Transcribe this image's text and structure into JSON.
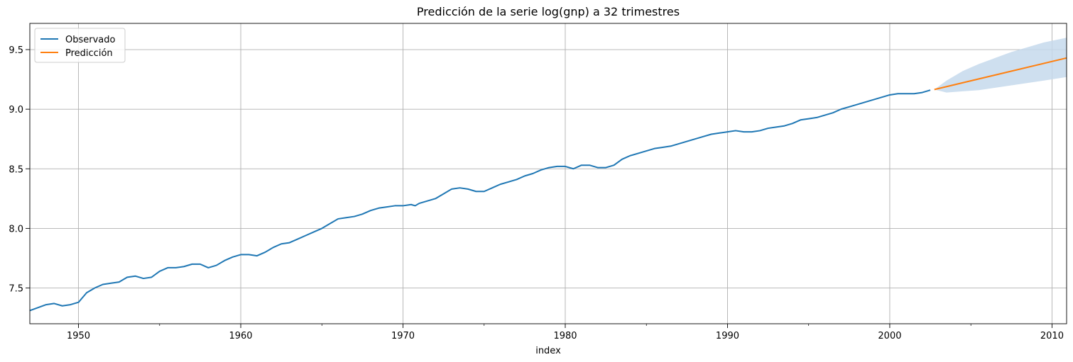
{
  "chart_data": {
    "type": "line",
    "title": "Predicción de la serie log(gnp) a 32 trimestres",
    "xlabel": "index",
    "ylabel": "",
    "xlim": [
      1947.0,
      2010.9
    ],
    "ylim": [
      7.2,
      9.72
    ],
    "x_ticks": [
      1950,
      1960,
      1970,
      1980,
      1990,
      2000,
      2010
    ],
    "x_tick_labels": [
      "1950",
      "1960",
      "1970",
      "1980",
      "1990",
      "2000",
      "2010"
    ],
    "y_ticks": [
      7.5,
      8.0,
      8.5,
      9.0,
      9.5
    ],
    "y_tick_labels": [
      "7.5",
      "8.0",
      "8.5",
      "9.0",
      "9.5"
    ],
    "grid": true,
    "legend_position": "top-left",
    "series": [
      {
        "name": "Observado",
        "color": "#1f77b4",
        "x": [
          1947.0,
          1948.0,
          1948.5,
          1949.0,
          1949.5,
          1950.0,
          1950.5,
          1951.0,
          1951.5,
          1952.0,
          1952.5,
          1953.0,
          1953.5,
          1954.0,
          1954.5,
          1955.0,
          1955.5,
          1956.0,
          1956.5,
          1957.0,
          1957.5,
          1958.0,
          1958.5,
          1959.0,
          1959.5,
          1960.0,
          1960.5,
          1961.0,
          1961.5,
          1962.0,
          1962.5,
          1963.0,
          1963.5,
          1964.0,
          1964.5,
          1965.0,
          1965.5,
          1966.0,
          1966.5,
          1967.0,
          1967.5,
          1968.0,
          1968.5,
          1969.0,
          1969.5,
          1970.0,
          1970.5,
          1970.75,
          1971.0,
          1971.5,
          1972.0,
          1972.5,
          1973.0,
          1973.5,
          1974.0,
          1974.5,
          1975.0,
          1975.5,
          1976.0,
          1976.5,
          1977.0,
          1977.5,
          1978.0,
          1978.5,
          1979.0,
          1979.5,
          1980.0,
          1980.5,
          1981.0,
          1981.5,
          1982.0,
          1982.5,
          1983.0,
          1983.5,
          1984.0,
          1984.5,
          1985.0,
          1985.5,
          1986.0,
          1986.5,
          1987.0,
          1987.5,
          1988.0,
          1988.5,
          1989.0,
          1989.5,
          1990.0,
          1990.5,
          1991.0,
          1991.5,
          1992.0,
          1992.5,
          1993.0,
          1993.5,
          1994.0,
          1994.5,
          1995.0,
          1995.5,
          1996.0,
          1996.5,
          1997.0,
          1997.5,
          1998.0,
          1998.5,
          1999.0,
          1999.5,
          2000.0,
          2000.5,
          2001.0,
          2001.5,
          2002.0,
          2002.5
        ],
        "values": [
          7.31,
          7.36,
          7.37,
          7.35,
          7.36,
          7.38,
          7.46,
          7.5,
          7.53,
          7.54,
          7.55,
          7.59,
          7.6,
          7.58,
          7.59,
          7.64,
          7.67,
          7.67,
          7.68,
          7.7,
          7.7,
          7.67,
          7.69,
          7.73,
          7.76,
          7.78,
          7.78,
          7.77,
          7.8,
          7.84,
          7.87,
          7.88,
          7.91,
          7.94,
          7.97,
          8.0,
          8.04,
          8.08,
          8.09,
          8.1,
          8.12,
          8.15,
          8.17,
          8.18,
          8.19,
          8.19,
          8.2,
          8.19,
          8.21,
          8.23,
          8.25,
          8.29,
          8.33,
          8.34,
          8.33,
          8.31,
          8.31,
          8.34,
          8.37,
          8.39,
          8.41,
          8.44,
          8.46,
          8.49,
          8.51,
          8.52,
          8.52,
          8.5,
          8.53,
          8.53,
          8.51,
          8.51,
          8.53,
          8.58,
          8.61,
          8.63,
          8.65,
          8.67,
          8.68,
          8.69,
          8.71,
          8.73,
          8.75,
          8.77,
          8.79,
          8.8,
          8.81,
          8.82,
          8.81,
          8.81,
          8.82,
          8.84,
          8.85,
          8.86,
          8.88,
          8.91,
          8.92,
          8.93,
          8.95,
          8.97,
          9.0,
          9.02,
          9.04,
          9.06,
          9.08,
          9.1,
          9.12,
          9.13,
          9.13,
          9.13,
          9.14,
          9.16
        ]
      },
      {
        "name": "Predicción",
        "color": "#ff7f0e",
        "x": [
          2002.75,
          2010.9
        ],
        "values": [
          9.165,
          9.43
        ]
      }
    ],
    "confidence_band": {
      "color": "#c6d9ec",
      "x": [
        2002.75,
        2003.5,
        2004.5,
        2005.5,
        2006.5,
        2007.5,
        2008.5,
        2009.5,
        2010.9
      ],
      "lower": [
        9.165,
        9.14,
        9.15,
        9.16,
        9.18,
        9.2,
        9.22,
        9.24,
        9.27
      ],
      "upper": [
        9.165,
        9.24,
        9.32,
        9.38,
        9.43,
        9.48,
        9.52,
        9.56,
        9.6
      ]
    }
  }
}
